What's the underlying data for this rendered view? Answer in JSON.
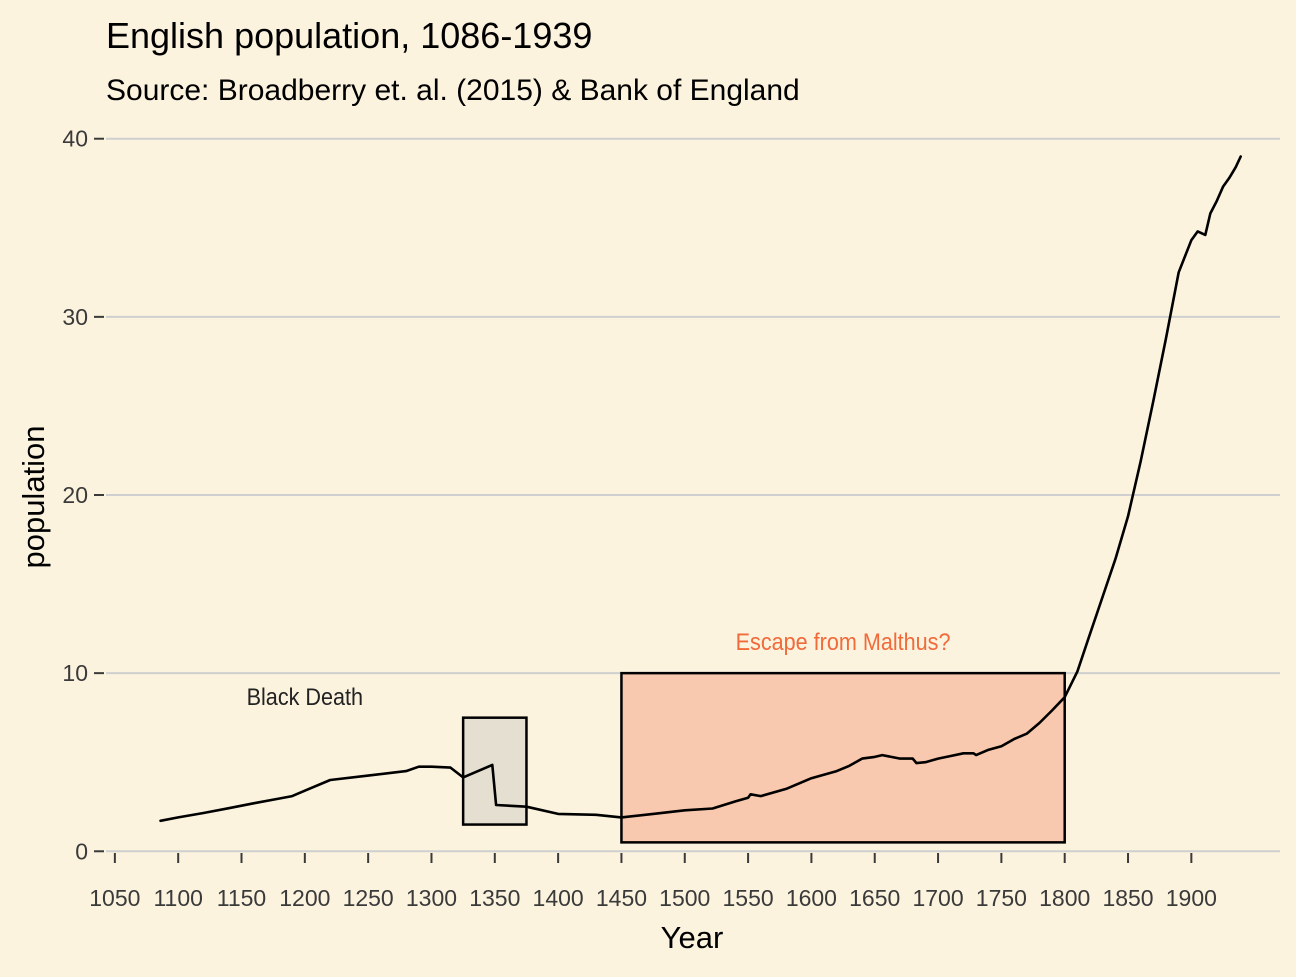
{
  "chart_data": {
    "type": "line",
    "title": "English population, 1086-1939",
    "subtitle": "Source: Broadberry et. al. (2015) & Bank of England",
    "xlabel": "Year",
    "ylabel": "population",
    "xlim": [
      1043,
      1970
    ],
    "ylim": [
      -1.5,
      41.5
    ],
    "grid": "horizontal major lines on",
    "xticks": [
      1050,
      1100,
      1150,
      1200,
      1250,
      1300,
      1350,
      1400,
      1450,
      1500,
      1550,
      1600,
      1650,
      1700,
      1750,
      1800,
      1850,
      1900
    ],
    "xtick_labels": [
      "1050",
      "1100",
      "1150",
      "1200",
      "1250",
      "1300",
      "1350",
      "1400",
      "1450",
      "1500",
      "1550",
      "1600",
      "1650",
      "1700",
      "1750",
      "1800",
      "1850",
      "1900"
    ],
    "yticks": [
      0,
      10,
      20,
      30,
      40
    ],
    "ytick_labels": [
      "0",
      "10",
      "20",
      "30",
      "40"
    ],
    "colors": {
      "background": "#fcf3df",
      "line": "#000000",
      "black_death_fill": "#e4dfd0",
      "malthus_fill": "#f8c9ae",
      "malthus_label": "#f06a3a",
      "black_death_label": "#222222"
    },
    "annotations": [
      {
        "label": "Black Death",
        "xmin": 1325,
        "xmax": 1375,
        "ymin": 1.5,
        "ymax": 7.5,
        "label_x": 1200,
        "label_y": 8.2
      },
      {
        "label": "Escape from Malthus?",
        "xmin": 1450,
        "xmax": 1800,
        "ymin": 0.5,
        "ymax": 10,
        "label_x": 1625,
        "label_y": 11.3
      }
    ],
    "series": [
      {
        "x": [
          1086,
          1100,
          1120,
          1140,
          1160,
          1180,
          1190,
          1200,
          1220,
          1250,
          1280,
          1290,
          1300,
          1315,
          1325,
          1340,
          1348,
          1351,
          1375,
          1400,
          1430,
          1450,
          1475,
          1500,
          1522,
          1540,
          1550,
          1552,
          1560,
          1580,
          1600,
          1620,
          1630,
          1640,
          1650,
          1656,
          1670,
          1680,
          1683,
          1690,
          1700,
          1710,
          1720,
          1728,
          1730,
          1740,
          1750,
          1760,
          1770,
          1780,
          1790,
          1800,
          1810,
          1820,
          1830,
          1840,
          1850,
          1860,
          1870,
          1880,
          1890,
          1900,
          1905,
          1911,
          1915,
          1920,
          1925,
          1930,
          1935,
          1939
        ],
        "values": [
          1.71,
          1.9,
          2.15,
          2.42,
          2.7,
          2.96,
          3.1,
          3.4,
          4.0,
          4.25,
          4.5,
          4.75,
          4.75,
          4.7,
          4.15,
          4.6,
          4.85,
          2.6,
          2.5,
          2.1,
          2.05,
          1.9,
          2.1,
          2.3,
          2.4,
          2.8,
          3.0,
          3.2,
          3.1,
          3.5,
          4.1,
          4.5,
          4.8,
          5.2,
          5.3,
          5.4,
          5.2,
          5.2,
          4.95,
          5.0,
          5.2,
          5.35,
          5.5,
          5.5,
          5.4,
          5.7,
          5.9,
          6.3,
          6.6,
          7.2,
          7.9,
          8.65,
          10.1,
          12.2,
          14.3,
          16.4,
          18.8,
          21.9,
          25.3,
          28.8,
          32.5,
          34.3,
          34.8,
          34.6,
          35.8,
          36.5,
          37.3,
          37.8,
          38.4,
          39.0
        ]
      }
    ]
  }
}
